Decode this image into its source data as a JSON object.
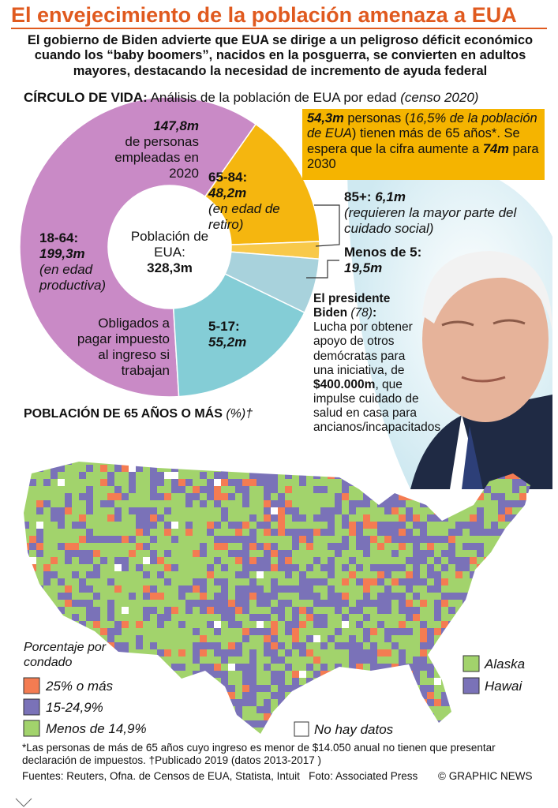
{
  "header": {
    "title": "El envejecimiento de la población amenaza a EUA",
    "subtitle": "El gobierno de Biden advierte que EUA se dirige a un peligroso déficit económico cuando los “baby boomers”, nacidos en la posguerra, se convierten en adultos mayores, destacando la necesidad de incremento de ayuda federal"
  },
  "section": {
    "label": "CÍRCULO DE VIDA:",
    "text": "Análisis de la población de EUA por edad",
    "note": "(censo 2020)"
  },
  "chart_data": {
    "type": "donut",
    "categories": [
      "18-64:",
      "65-84:",
      "85+:",
      "Menos de 5:",
      "5-17:"
    ],
    "values": [
      199.3,
      48.2,
      6.1,
      19.5,
      55.2
    ],
    "value_labels": [
      "199,3m",
      "48,2m",
      "6,1m",
      "19,5m",
      "55,2m"
    ],
    "colors": [
      "#c98ac6",
      "#f5b60f",
      "#f8c94a",
      "#a8d2dc",
      "#84cdd6"
    ],
    "notes": {
      "productive": "(en edad productiva)",
      "retired": "(en edad de retiro)",
      "care": "(requieren la mayor parte del cuidado social)",
      "taxes": "Obligados a pagar impuesto al ingreso si trabajan"
    },
    "employed": {
      "value": 147.8,
      "label": "147,8m",
      "text": "de personas empleadas en 2020"
    },
    "center_label": "Población de EUA:",
    "total": 328.3,
    "total_label": "328,3m"
  },
  "callout": {
    "parts": [
      "54,3m",
      " personas (",
      "16,5% de la población de EUA",
      ") tienen más de 65 años*. Se espera que la cifra aumente a ",
      "74m",
      " para 2030"
    ]
  },
  "biden": {
    "name": "El presidente Biden",
    "age": "(78)",
    "colon": ":",
    "text": "Lucha por obtener apoyo de otros demócratas para una iniciativa, de ",
    "amount": "$400.000m",
    "rest": ", que impulse cuidado de salud en casa para ancianos/incapacitados"
  },
  "map": {
    "title": "POBLACIÓN DE 65 AÑOS O MÁS",
    "unit": "(%)†",
    "legend_title": "Porcentaje por condado",
    "legend": [
      {
        "label": "25% o más",
        "color": "#f47c52"
      },
      {
        "label": "15-24,9%",
        "color": "#7a72b8"
      },
      {
        "label": "Menos de 14,9%",
        "color": "#a2d36c"
      }
    ],
    "no_data": "No hay datos",
    "insets": [
      {
        "label": "Alaska",
        "color": "#a2d36c"
      },
      {
        "label": "Hawai",
        "color": "#7a72b8"
      }
    ]
  },
  "footer": {
    "note": "*Las personas de más de 65 años cuyo ingreso es menor de $14.050 anual no tienen que presentar declaración de impuestos. †Publicado 2019 (datos 2013-2017 )",
    "sources": "Fuentes: Reuters, Ofna. de Censos de EUA, Statista, Intuit   Foto: Associated Press",
    "credit": "© GRAPHIC NEWS"
  }
}
